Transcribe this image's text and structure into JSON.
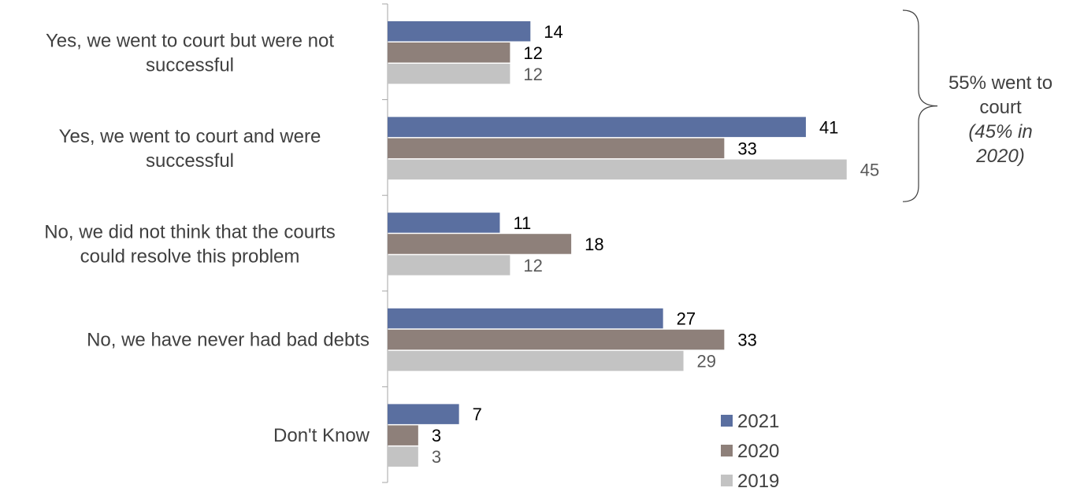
{
  "chart_data": {
    "type": "bar",
    "orientation": "horizontal",
    "categories": [
      [
        "Yes, we went to court but were not",
        "successful"
      ],
      [
        "Yes, we went to court and were",
        "successful"
      ],
      [
        "No, we did not think that the courts",
        "could resolve this problem"
      ],
      [
        "No, we have never had bad debts"
      ],
      [
        "Don't Know"
      ]
    ],
    "series": [
      {
        "name": "2021",
        "color": "#5a6fa0",
        "values": [
          14,
          41,
          11,
          27,
          7
        ]
      },
      {
        "name": "2020",
        "color": "#8e807a",
        "values": [
          12,
          33,
          18,
          33,
          3
        ]
      },
      {
        "name": "2019",
        "color": "#c3c3c3",
        "values": [
          12,
          45,
          12,
          29,
          3
        ]
      }
    ],
    "value_label_colors": [
      "#000000",
      "#000000",
      "#595959"
    ],
    "xlim": [
      0,
      100
    ],
    "grid": false,
    "legend_position": "bottom-right",
    "annotation": {
      "spans_categories": [
        0,
        1
      ],
      "lines": [
        "55% went to",
        "court"
      ],
      "italic_lines": [
        "(45% in",
        "2020)"
      ]
    }
  }
}
